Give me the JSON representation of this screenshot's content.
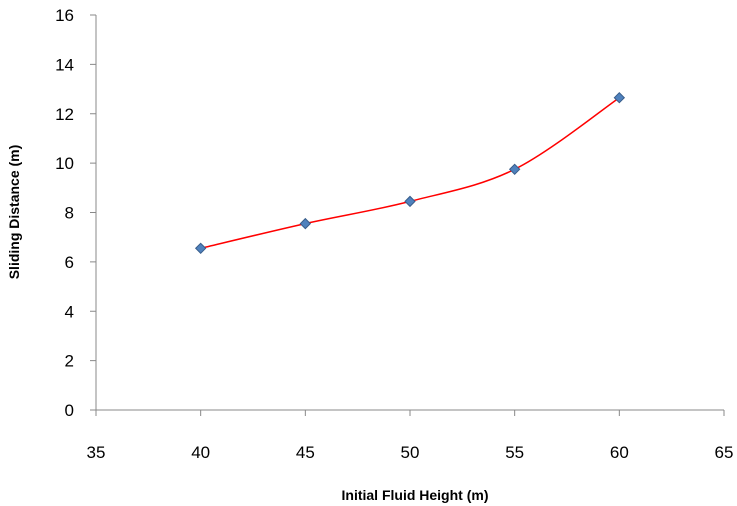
{
  "chart_data": {
    "type": "scatter",
    "title": "",
    "xlabel": "Initial Fluid Height (m)",
    "ylabel": "Sliding Distance (m)",
    "xlim": [
      35,
      65
    ],
    "ylim": [
      0,
      16
    ],
    "x_ticks": [
      35,
      40,
      45,
      50,
      55,
      60,
      65
    ],
    "y_ticks": [
      0,
      2,
      4,
      6,
      8,
      10,
      12,
      14,
      16
    ],
    "grid": false,
    "legend": "none",
    "smooth_line": true,
    "series": [
      {
        "x": [
          40,
          45,
          50,
          55,
          60
        ],
        "values": [
          6.55,
          7.55,
          8.45,
          9.75,
          12.65
        ],
        "marker": "diamond",
        "marker_color": "#4F81BD",
        "marker_edge_color": "#385D8A",
        "line_color": "#FF0000"
      }
    ]
  }
}
